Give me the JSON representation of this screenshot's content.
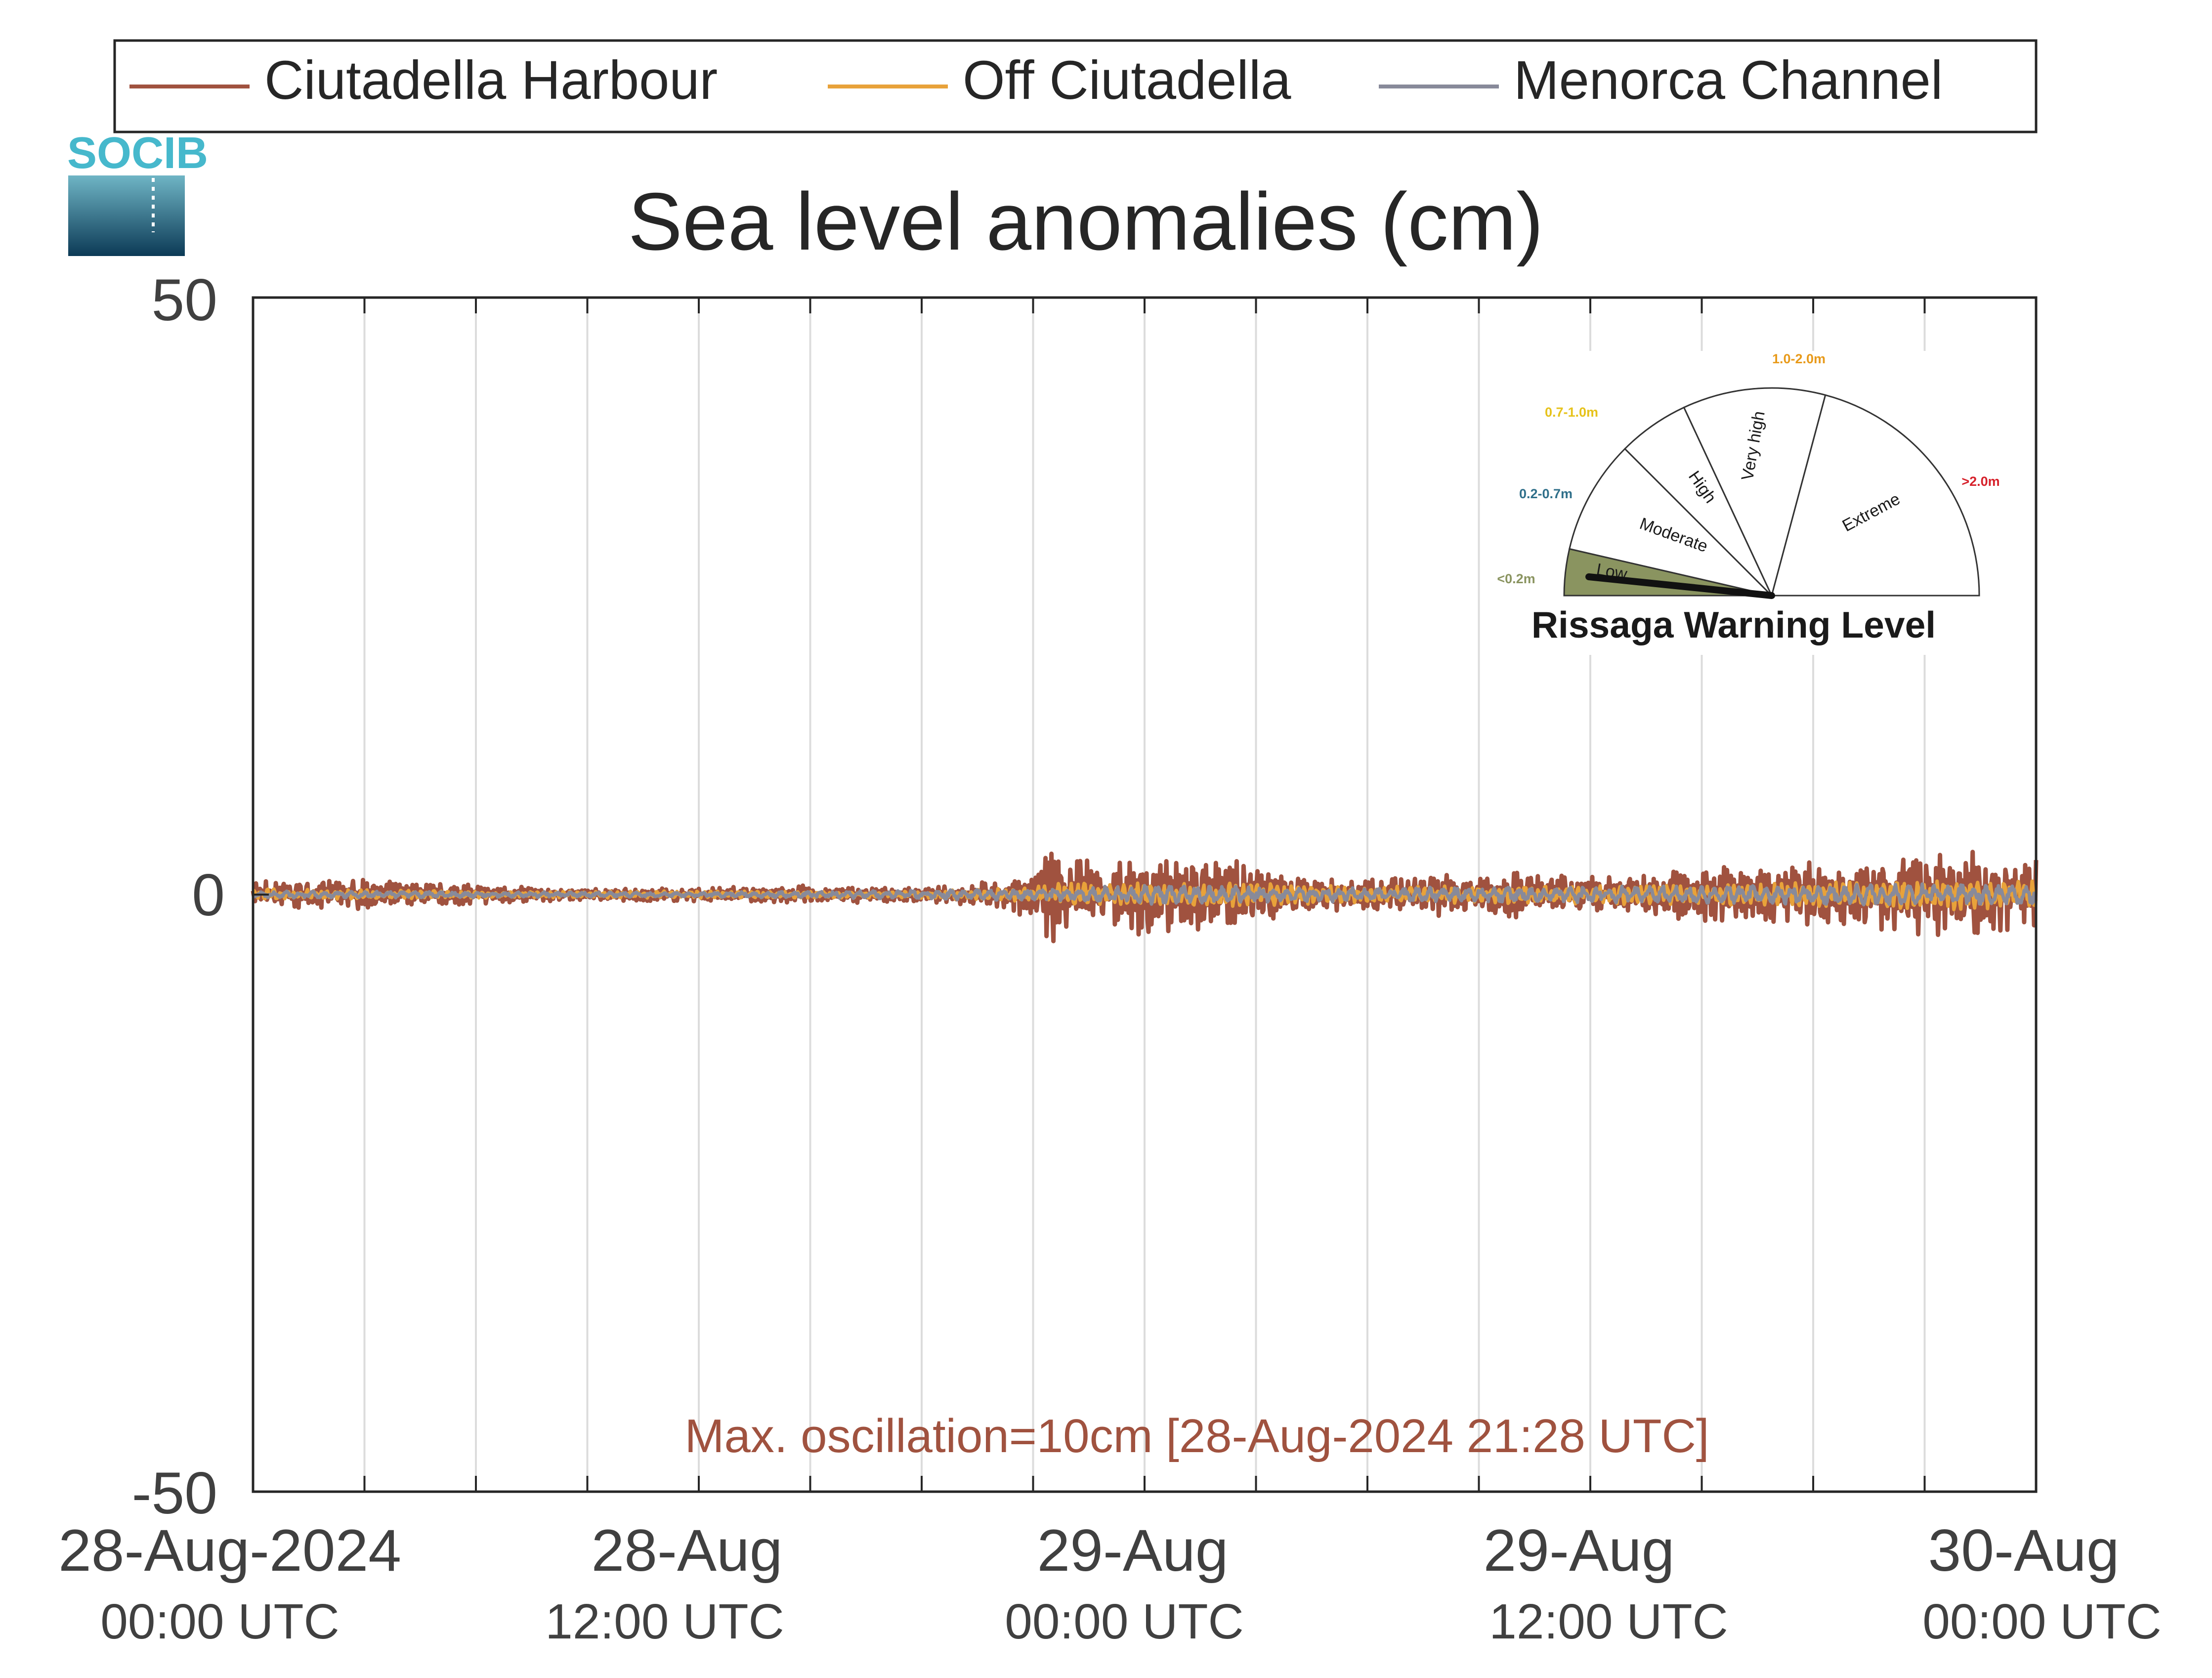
{
  "logo": {
    "text": "SOCIB"
  },
  "legend": {
    "position": "top",
    "items": [
      {
        "label": "Ciutadella Harbour",
        "color": "#a0523f"
      },
      {
        "label": "Off Ciutadella",
        "color": "#e8a23a"
      },
      {
        "label": "Menorca Channel",
        "color": "#888a9a"
      }
    ]
  },
  "chart_data": {
    "type": "line",
    "title": "Sea level anomalies (cm)",
    "xlabel": "",
    "ylabel": "",
    "ylim": [
      -50,
      50
    ],
    "yticks": [
      {
        "value": 50,
        "label": "50"
      },
      {
        "value": 0,
        "label": "0"
      },
      {
        "value": -50,
        "label": "-50"
      }
    ],
    "x_unit": "hours since 28-Aug-2024 00:00 UTC",
    "xlim": [
      0,
      48
    ],
    "xticks": [
      {
        "value": 0,
        "date": "28-Aug-2024",
        "time": "00:00 UTC"
      },
      {
        "value": 12,
        "date": "28-Aug",
        "time": "12:00 UTC"
      },
      {
        "value": 24,
        "date": "29-Aug",
        "time": "00:00 UTC"
      },
      {
        "value": 36,
        "date": "29-Aug",
        "time": "12:00 UTC"
      },
      {
        "value": 48,
        "date": "30-Aug",
        "time": "00:00 UTC"
      }
    ],
    "grid": true,
    "series": [
      {
        "name": "Ciutadella Harbour",
        "color": "#a0523f",
        "envelope": {
          "x": [
            0,
            3,
            6,
            9,
            12,
            15,
            18,
            20,
            21,
            21.5,
            22,
            23,
            24,
            25,
            26,
            27,
            28,
            30,
            32,
            34,
            36,
            38,
            40,
            42,
            44,
            45,
            46,
            47,
            48
          ],
          "amplitude": [
            1.2,
            1.3,
            0.8,
            0.5,
            0.6,
            0.8,
            0.6,
            1.2,
            2.2,
            5.0,
            3.5,
            2.5,
            3.5,
            3.0,
            3.2,
            2.5,
            1.5,
            1.3,
            1.8,
            2.0,
            1.6,
            2.0,
            2.5,
            2.8,
            3.0,
            3.5,
            3.8,
            3.2,
            3.5
          ]
        }
      },
      {
        "name": "Off Ciutadella",
        "color": "#e8a23a",
        "envelope": {
          "x": [
            0,
            6,
            12,
            18,
            21,
            22,
            24,
            27,
            30,
            36,
            42,
            46,
            48
          ],
          "amplitude": [
            0.5,
            0.3,
            0.3,
            0.3,
            0.7,
            1.1,
            1.0,
            1.0,
            0.7,
            0.8,
            1.0,
            1.3,
            1.2
          ]
        }
      },
      {
        "name": "Menorca Channel",
        "color": "#888a9a",
        "envelope": {
          "x": [
            0,
            12,
            21,
            24,
            30,
            36,
            42,
            48
          ],
          "amplitude": [
            0.3,
            0.2,
            0.5,
            0.8,
            0.6,
            0.7,
            0.9,
            0.9
          ]
        }
      }
    ],
    "annotation": {
      "text": "Max. oscillation=10cm [28-Aug-2024 21:28 UTC]",
      "color": "#a0523f",
      "max_oscillation_cm": 10,
      "time": "28-Aug-2024 21:28 UTC"
    }
  },
  "warning_gauge": {
    "title": "Rissaga Warning Level",
    "current_level": "Low",
    "sectors": [
      {
        "label": "Low",
        "range": "<0.2m",
        "range_color": "#8a9460",
        "fill": "#8a9460"
      },
      {
        "label": "Moderate",
        "range": "0.2-0.7m",
        "range_color": "#2f6f8a",
        "fill": "#ffffff"
      },
      {
        "label": "High",
        "range": "0.7-1.0m",
        "range_color": "#e6c21a",
        "fill": "#ffffff"
      },
      {
        "label": "Very high",
        "range": "1.0-2.0m",
        "range_color": "#e89a1a",
        "fill": "#ffffff"
      },
      {
        "label": "Extreme",
        "range": ">2.0m",
        "range_color": "#d6202a",
        "fill": "#ffffff"
      }
    ]
  }
}
